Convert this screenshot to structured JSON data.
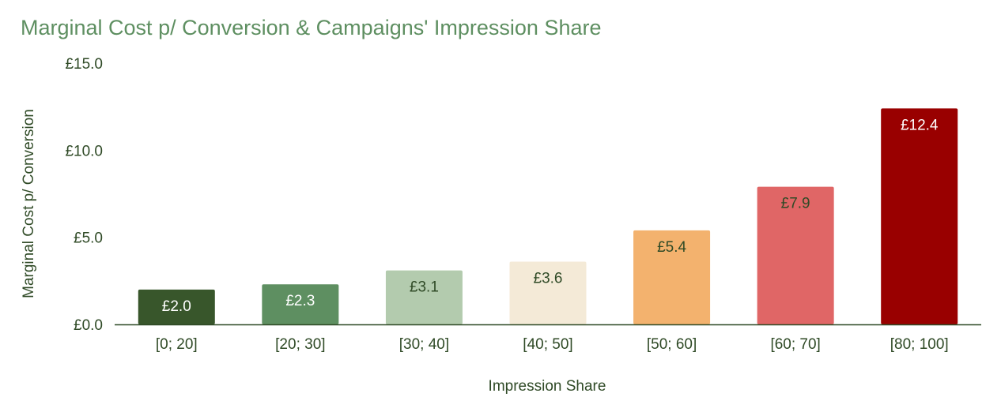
{
  "chart_data": {
    "type": "bar",
    "title": "Marginal Cost p/ Conversion & Campaigns' Impression Share",
    "xlabel": "Impression Share",
    "ylabel": "Marginal Cost p/ Conversion",
    "categories": [
      "[0; 20]",
      "[20; 30]",
      "[30; 40]",
      "[40; 50]",
      "[50; 60]",
      "[60; 70]",
      "[80; 100]"
    ],
    "values": [
      2.0,
      2.3,
      3.1,
      3.6,
      5.4,
      7.9,
      12.4
    ],
    "data_labels": [
      "£2.0",
      "£2.3",
      "£3.1",
      "£3.6",
      "£5.4",
      "£7.9",
      "£12.4"
    ],
    "bar_colors": [
      "#38562b",
      "#5e8f61",
      "#b3cbae",
      "#f4ead7",
      "#f3b26e",
      "#e06666",
      "#990000"
    ],
    "label_colors": [
      "#ffffff",
      "#ffffff",
      "#2f4a26",
      "#2f4a26",
      "#2f4a26",
      "#2f4a26",
      "#ffffff"
    ],
    "ylim": [
      0,
      15
    ],
    "yticks": [
      0,
      5,
      10,
      15
    ],
    "ytick_labels": [
      "£0.0",
      "£5.0",
      "£10.0",
      "£15.0"
    ],
    "grid": false,
    "legend": "none"
  },
  "colors": {
    "title": "#5e8f61",
    "axis_text": "#2f4a26",
    "baseline": "#2f4a26"
  }
}
